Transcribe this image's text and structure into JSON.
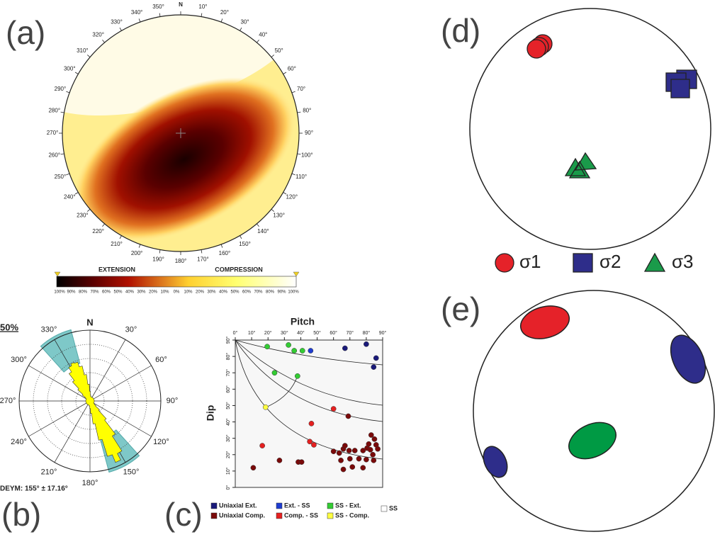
{
  "panel_a": {
    "label": "(a)",
    "azimuths": [
      "N",
      "10°",
      "20°",
      "30°",
      "40°",
      "50°",
      "60°",
      "70°",
      "80°",
      "90°",
      "100°",
      "110°",
      "120°",
      "130°",
      "140°",
      "150°",
      "160°",
      "170°",
      "180°",
      "190°",
      "200°",
      "210°",
      "220°",
      "230°",
      "240°",
      "250°",
      "260°",
      "270°",
      "280°",
      "290°",
      "300°",
      "310°",
      "320°",
      "330°",
      "340°",
      "350°"
    ],
    "extension_label": "EXTENSION",
    "compression_label": "COMPRESSION",
    "colorbar_labels": [
      "100%",
      "90%",
      "80%",
      "70%",
      "60%",
      "50%",
      "40%",
      "30%",
      "20%",
      "10%",
      "0%",
      "10%",
      "20%",
      "30%",
      "40%",
      "50%",
      "60%",
      "70%",
      "80%",
      "90%",
      "100%"
    ]
  },
  "panel_b": {
    "label": "(b)",
    "scale_label": "50%",
    "azimuths": [
      "N",
      "30°",
      "60°",
      "90°",
      "120°",
      "150°",
      "180°",
      "210°",
      "240°",
      "270°",
      "300°",
      "330°"
    ],
    "stat": "DEYM: 155° ± 17.16°"
  },
  "panel_c": {
    "label": "(c)"
  },
  "chart_data": {
    "type": "scatter",
    "xlabel": "Pitch",
    "ylabel": "Dip",
    "xlim": [
      0,
      90
    ],
    "ylim": [
      0,
      90
    ],
    "xticks": [
      {
        "value": 0,
        "label": "0°"
      },
      {
        "value": 10,
        "label": "10°"
      },
      {
        "value": 20,
        "label": "20°"
      },
      {
        "value": 30,
        "label": "30°"
      },
      {
        "value": 40,
        "label": "40°"
      },
      {
        "value": 50,
        "label": "50°"
      },
      {
        "value": 60,
        "label": "60°"
      },
      {
        "value": 70,
        "label": "70°"
      },
      {
        "value": 80,
        "label": "80°"
      },
      {
        "value": 90,
        "label": "90°"
      }
    ],
    "yticks": [
      {
        "value": 0,
        "label": "0°"
      },
      {
        "value": 10,
        "label": "10°"
      },
      {
        "value": 20,
        "label": "20°"
      },
      {
        "value": 30,
        "label": "30°"
      },
      {
        "value": 40,
        "label": "40°"
      },
      {
        "value": 50,
        "label": "50°"
      },
      {
        "value": 60,
        "label": "60°"
      },
      {
        "value": 70,
        "label": "70°"
      },
      {
        "value": 80,
        "label": "80°"
      },
      {
        "value": 90,
        "label": "90°"
      }
    ],
    "series": [
      {
        "name": "Uniaxial Ext.",
        "color": "#1a1a7a",
        "x": [
          67,
          80,
          86,
          84.5
        ],
        "y": [
          85,
          87.5,
          79,
          73.5
        ]
      },
      {
        "name": "Ext. - SS",
        "color": "#1e3cd0",
        "x": [
          46
        ],
        "y": [
          83.5
        ]
      },
      {
        "name": "SS - Ext.",
        "color": "#33cc33",
        "x": [
          19.5,
          36,
          41,
          32.5,
          24,
          38
        ],
        "y": [
          86,
          83.5,
          83.5,
          87,
          70,
          68
        ]
      },
      {
        "name": "SS",
        "color": "#ffffff",
        "x": [],
        "y": []
      },
      {
        "name": "Uniaxial Comp.",
        "color": "#7a0a0a",
        "x": [
          11,
          27,
          38.5,
          40.5,
          69,
          60,
          63.5,
          66,
          67,
          69.5,
          64.5,
          66,
          70,
          71.5,
          73,
          75.5,
          78,
          78,
          80.5,
          81.5,
          82.5,
          83,
          85,
          84,
          84.5,
          86,
          87,
          80
        ],
        "y": [
          12,
          16.5,
          15.5,
          15.5,
          43.5,
          22,
          21,
          23.5,
          25.5,
          22.5,
          16.5,
          11,
          17.5,
          12.5,
          22.5,
          17.5,
          12,
          22.5,
          24,
          26.5,
          23,
          32,
          29.5,
          20,
          16.5,
          26,
          23.5,
          17
        ]
      },
      {
        "name": "Comp. - SS",
        "color": "#e52020",
        "x": [
          60,
          46.5,
          16.5,
          45.5,
          48
        ],
        "y": [
          48,
          39,
          25.5,
          28,
          26
        ]
      },
      {
        "name": "SS - Comp.",
        "color": "#ffff40",
        "x": [
          18.5
        ],
        "y": [
          49
        ]
      }
    ]
  },
  "panel_d": {
    "label": "(d)",
    "legend": [
      "σ1",
      "σ2",
      "σ3"
    ]
  },
  "panel_e": {
    "label": "(e)"
  }
}
